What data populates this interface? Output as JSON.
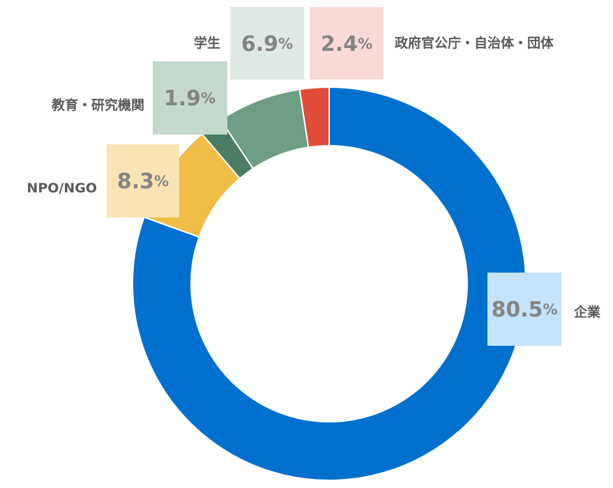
{
  "chart_data": {
    "type": "pie",
    "donut": true,
    "unit": "%",
    "start_angle_deg": 0,
    "direction": "clockwise",
    "slices": [
      {
        "label": "企業",
        "value": 80.5,
        "display": "80.5",
        "color": "#0070CE",
        "box_color": "#C5E3FB"
      },
      {
        "label": "NPO/NGO",
        "value": 8.3,
        "display": "8.3",
        "color": "#F0BE46",
        "box_color": "#F9E4B3"
      },
      {
        "label": "教育・研究機関",
        "value": 1.9,
        "display": "1.9",
        "color": "#4A7D63",
        "box_color": "#C4D9CC"
      },
      {
        "label": "学生",
        "value": 6.9,
        "display": "6.9",
        "color": "#6E9F84",
        "box_color": "#DFEAE4"
      },
      {
        "label": "政府官公庁・自治体・団体",
        "value": 2.4,
        "display": "2.4",
        "color": "#E34B3A",
        "box_color": "#F8DBD8"
      }
    ]
  }
}
